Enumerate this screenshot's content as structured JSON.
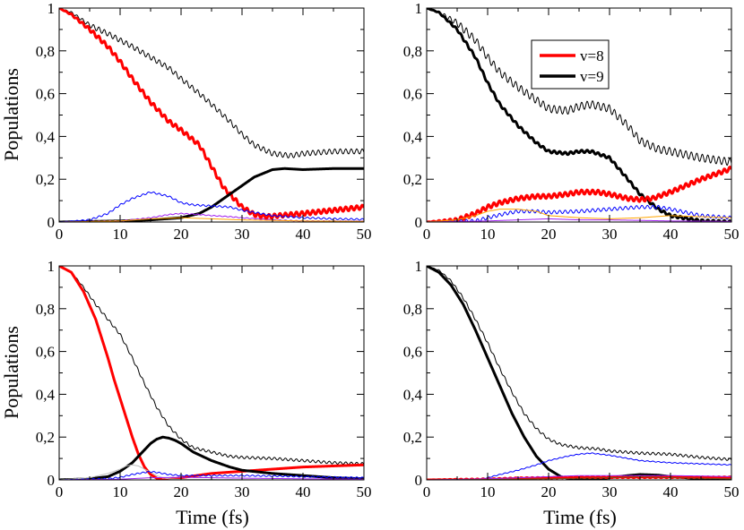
{
  "figure": {
    "ylabel": "Populations",
    "xlabel": "Time (fs)"
  },
  "legend": {
    "entries": [
      {
        "label": "v=8",
        "color": "#ff0000"
      },
      {
        "label": "v=9",
        "color": "#000000"
      }
    ]
  },
  "colors": {
    "red": "#ff0000",
    "black": "#000000",
    "blue": "#0000ff",
    "purple": "#a020f0",
    "orange": "#ffa500",
    "gray": "#bebebe",
    "brown": "#8b4513"
  },
  "chart_data": [
    {
      "type": "line",
      "panel": "top-left",
      "xlim": [
        0,
        50
      ],
      "ylim": [
        0,
        1
      ],
      "xticks": [
        "0",
        "10",
        "20",
        "30",
        "40",
        "50"
      ],
      "yticks": [
        "0",
        "0,2",
        "0,4",
        "0,6",
        "0,8",
        "1"
      ],
      "ylabel": "Populations",
      "xlabel": "",
      "series": [
        {
          "color": "black",
          "width": 1,
          "osc": 0.012,
          "x": [
            0,
            2,
            5,
            8,
            10,
            12,
            15,
            18,
            20,
            23,
            25,
            28,
            30,
            32,
            35,
            38,
            40,
            45,
            50
          ],
          "y": [
            1,
            0.98,
            0.92,
            0.88,
            0.85,
            0.82,
            0.77,
            0.72,
            0.67,
            0.6,
            0.55,
            0.47,
            0.41,
            0.36,
            0.32,
            0.31,
            0.32,
            0.33,
            0.33
          ]
        },
        {
          "color": "red",
          "width": 3,
          "osc": 0.01,
          "x": [
            0,
            2,
            5,
            8,
            10,
            12,
            15,
            18,
            20,
            23,
            25,
            27,
            30,
            32,
            34,
            36,
            40,
            45,
            50
          ],
          "y": [
            1,
            0.97,
            0.9,
            0.82,
            0.75,
            0.67,
            0.56,
            0.47,
            0.43,
            0.36,
            0.26,
            0.16,
            0.07,
            0.035,
            0.025,
            0.03,
            0.04,
            0.055,
            0.07
          ]
        },
        {
          "color": "black",
          "width": 3,
          "osc": 0,
          "x": [
            0,
            10,
            15,
            20,
            23,
            25,
            27,
            30,
            32,
            35,
            37,
            40,
            45,
            50
          ],
          "y": [
            0,
            0.005,
            0.01,
            0.02,
            0.04,
            0.07,
            0.11,
            0.17,
            0.21,
            0.245,
            0.25,
            0.245,
            0.25,
            0.25
          ]
        },
        {
          "color": "blue",
          "width": 1,
          "osc": 0.004,
          "x": [
            0,
            5,
            8,
            10,
            12,
            15,
            18,
            20,
            22,
            25,
            28,
            30,
            35,
            40,
            45,
            50
          ],
          "y": [
            0,
            0.01,
            0.04,
            0.08,
            0.11,
            0.14,
            0.12,
            0.09,
            0.08,
            0.075,
            0.07,
            0.055,
            0.03,
            0.02,
            0.015,
            0.012
          ]
        },
        {
          "color": "purple",
          "width": 1,
          "osc": 0.002,
          "x": [
            0,
            10,
            15,
            18,
            20,
            23,
            25,
            28,
            30,
            35,
            40,
            50
          ],
          "y": [
            0,
            0.005,
            0.02,
            0.035,
            0.04,
            0.035,
            0.03,
            0.025,
            0.02,
            0.01,
            0.005,
            0.003
          ]
        },
        {
          "color": "orange",
          "width": 1,
          "osc": 0,
          "x": [
            0,
            10,
            15,
            20,
            25,
            30,
            40,
            50
          ],
          "y": [
            0,
            0.005,
            0.015,
            0.02,
            0.015,
            0.01,
            0.005,
            0.003
          ]
        }
      ]
    },
    {
      "type": "line",
      "panel": "top-right",
      "xlim": [
        0,
        50
      ],
      "ylim": [
        0,
        1
      ],
      "xticks": [
        "0",
        "10",
        "20",
        "30",
        "40",
        "50"
      ],
      "yticks": [
        "0",
        "0,2",
        "0,4",
        "0,6",
        "0,8",
        "1"
      ],
      "ylabel": "",
      "xlabel": "",
      "series": [
        {
          "color": "black",
          "width": 1,
          "osc": 0.018,
          "x": [
            0,
            2,
            5,
            8,
            10,
            12,
            15,
            18,
            20,
            23,
            25,
            27,
            30,
            33,
            35,
            38,
            40,
            45,
            50
          ],
          "y": [
            1,
            0.98,
            0.93,
            0.85,
            0.77,
            0.7,
            0.63,
            0.57,
            0.53,
            0.52,
            0.54,
            0.55,
            0.53,
            0.45,
            0.38,
            0.34,
            0.33,
            0.3,
            0.28
          ]
        },
        {
          "color": "black",
          "width": 3,
          "osc": 0.006,
          "x": [
            0,
            2,
            5,
            8,
            10,
            12,
            15,
            18,
            20,
            23,
            25,
            27,
            30,
            33,
            35,
            38,
            40,
            45,
            50
          ],
          "y": [
            1,
            0.98,
            0.9,
            0.77,
            0.65,
            0.55,
            0.45,
            0.37,
            0.33,
            0.32,
            0.33,
            0.33,
            0.3,
            0.2,
            0.13,
            0.06,
            0.03,
            0.005,
            0
          ]
        },
        {
          "color": "red",
          "width": 3,
          "osc": 0.01,
          "x": [
            0,
            5,
            8,
            10,
            12,
            15,
            18,
            20,
            23,
            25,
            28,
            30,
            33,
            35,
            37,
            40,
            45,
            50
          ],
          "y": [
            0,
            0.01,
            0.04,
            0.07,
            0.09,
            0.11,
            0.12,
            0.12,
            0.13,
            0.14,
            0.14,
            0.13,
            0.11,
            0.105,
            0.11,
            0.14,
            0.2,
            0.25
          ]
        },
        {
          "color": "blue",
          "width": 1,
          "osc": 0.008,
          "x": [
            0,
            8,
            10,
            13,
            15,
            18,
            20,
            25,
            30,
            35,
            38,
            40,
            45,
            50
          ],
          "y": [
            0,
            0.005,
            0.02,
            0.04,
            0.05,
            0.05,
            0.045,
            0.05,
            0.06,
            0.07,
            0.07,
            0.06,
            0.03,
            0.02
          ]
        },
        {
          "color": "orange",
          "width": 1,
          "osc": 0,
          "x": [
            0,
            5,
            8,
            10,
            12,
            15,
            18,
            20,
            25,
            30,
            35,
            40,
            45,
            50
          ],
          "y": [
            0,
            0.01,
            0.03,
            0.05,
            0.06,
            0.06,
            0.05,
            0.03,
            0.02,
            0.015,
            0.02,
            0.03,
            0.025,
            0.02
          ]
        },
        {
          "color": "purple",
          "width": 1,
          "osc": 0,
          "x": [
            0,
            10,
            15,
            20,
            25,
            30,
            40,
            50
          ],
          "y": [
            0,
            0.005,
            0.01,
            0.015,
            0.01,
            0.01,
            0.005,
            0.003
          ]
        }
      ]
    },
    {
      "type": "line",
      "panel": "bottom-left",
      "xlim": [
        0,
        50
      ],
      "ylim": [
        0,
        1
      ],
      "xticks": [
        "0",
        "10",
        "20",
        "30",
        "40",
        "50"
      ],
      "yticks": [
        "0",
        "0,2",
        "0,4",
        "0,6",
        "0,8",
        "1"
      ],
      "ylabel": "Populations",
      "xlabel": "Time (fs)",
      "series": [
        {
          "color": "black",
          "width": 1,
          "osc": 0.006,
          "x": [
            0,
            2,
            4,
            6,
            8,
            10,
            12,
            14,
            16,
            18,
            20,
            22,
            25,
            28,
            30,
            35,
            40,
            45,
            50
          ],
          "y": [
            1,
            0.97,
            0.9,
            0.82,
            0.75,
            0.68,
            0.57,
            0.45,
            0.34,
            0.25,
            0.19,
            0.15,
            0.13,
            0.11,
            0.105,
            0.1,
            0.09,
            0.08,
            0.075
          ]
        },
        {
          "color": "red",
          "width": 3,
          "osc": 0,
          "x": [
            0,
            2,
            4,
            6,
            8,
            9,
            10,
            11,
            12,
            13,
            14,
            15,
            16,
            17,
            18,
            20,
            25,
            30,
            35,
            40,
            45,
            50
          ],
          "y": [
            1,
            0.97,
            0.88,
            0.75,
            0.57,
            0.47,
            0.38,
            0.29,
            0.2,
            0.12,
            0.06,
            0.025,
            0.008,
            0,
            0.002,
            0.01,
            0.03,
            0.04,
            0.05,
            0.06,
            0.065,
            0.07
          ]
        },
        {
          "color": "black",
          "width": 3,
          "osc": 0,
          "x": [
            0,
            5,
            8,
            10,
            12,
            13,
            14,
            15,
            16,
            17,
            18,
            19,
            20,
            22,
            25,
            28,
            30,
            35,
            40,
            45,
            50
          ],
          "y": [
            0,
            0.005,
            0.015,
            0.04,
            0.08,
            0.11,
            0.14,
            0.17,
            0.19,
            0.2,
            0.195,
            0.185,
            0.17,
            0.13,
            0.09,
            0.06,
            0.045,
            0.03,
            0.02,
            0.01,
            0.005
          ]
        },
        {
          "color": "gray",
          "width": 1,
          "osc": 0,
          "x": [
            0,
            5,
            8,
            10,
            11,
            12,
            13,
            14,
            15,
            16,
            17,
            18,
            20,
            25,
            30,
            40,
            50
          ],
          "y": [
            0,
            0.01,
            0.03,
            0.05,
            0.065,
            0.07,
            0.065,
            0.05,
            0.035,
            0.02,
            0.01,
            0.005,
            0.002,
            0.002,
            0.001,
            0,
            0
          ]
        },
        {
          "color": "blue",
          "width": 1,
          "osc": 0.003,
          "x": [
            0,
            8,
            10,
            12,
            14,
            15,
            16,
            18,
            20,
            25,
            30,
            35,
            40,
            50
          ],
          "y": [
            0,
            0.005,
            0.012,
            0.025,
            0.035,
            0.038,
            0.035,
            0.025,
            0.02,
            0.02,
            0.02,
            0.018,
            0.015,
            0.01
          ]
        },
        {
          "color": "purple",
          "width": 1,
          "osc": 0,
          "x": [
            0,
            10,
            15,
            20,
            25,
            30,
            40,
            50
          ],
          "y": [
            0,
            0.003,
            0.01,
            0.012,
            0.01,
            0.008,
            0.005,
            0.003
          ]
        }
      ]
    },
    {
      "type": "line",
      "panel": "bottom-right",
      "xlim": [
        0,
        50
      ],
      "ylim": [
        0,
        1
      ],
      "xticks": [
        "0",
        "10",
        "20",
        "30",
        "40",
        "50"
      ],
      "yticks": [
        "0",
        "0,2",
        "0,4",
        "0,6",
        "0,8",
        "1"
      ],
      "ylabel": "",
      "xlabel": "Time (fs)",
      "series": [
        {
          "color": "black",
          "width": 1,
          "osc": 0.006,
          "x": [
            0,
            2,
            4,
            6,
            8,
            10,
            12,
            14,
            16,
            18,
            20,
            22,
            25,
            28,
            30,
            35,
            40,
            45,
            50
          ],
          "y": [
            1,
            0.98,
            0.93,
            0.85,
            0.75,
            0.64,
            0.52,
            0.41,
            0.31,
            0.24,
            0.19,
            0.165,
            0.15,
            0.145,
            0.135,
            0.125,
            0.12,
            0.105,
            0.095
          ]
        },
        {
          "color": "black",
          "width": 3,
          "osc": 0,
          "x": [
            0,
            2,
            4,
            6,
            8,
            10,
            12,
            14,
            16,
            18,
            20,
            22,
            24,
            26,
            28,
            30,
            33,
            35,
            38,
            40,
            45,
            50
          ],
          "y": [
            1,
            0.97,
            0.91,
            0.82,
            0.7,
            0.57,
            0.44,
            0.31,
            0.2,
            0.11,
            0.05,
            0.015,
            0.002,
            0,
            0.003,
            0.01,
            0.02,
            0.025,
            0.022,
            0.015,
            0.005,
            0
          ]
        },
        {
          "color": "blue",
          "width": 1,
          "osc": 0.002,
          "x": [
            0,
            8,
            10,
            12,
            15,
            18,
            20,
            23,
            25,
            27,
            30,
            33,
            35,
            40,
            45,
            50
          ],
          "y": [
            0,
            0.003,
            0.01,
            0.025,
            0.045,
            0.07,
            0.09,
            0.11,
            0.12,
            0.125,
            0.115,
            0.1,
            0.09,
            0.08,
            0.075,
            0.07
          ]
        },
        {
          "color": "red",
          "width": 3,
          "osc": 0.002,
          "x": [
            0,
            10,
            15,
            20,
            25,
            30,
            35,
            40,
            45,
            50
          ],
          "y": [
            0,
            0.003,
            0.008,
            0.01,
            0.012,
            0.012,
            0.012,
            0.012,
            0.012,
            0.012
          ]
        },
        {
          "color": "purple",
          "width": 1,
          "osc": 0,
          "x": [
            0,
            10,
            15,
            20,
            25,
            30,
            35,
            40,
            45,
            50
          ],
          "y": [
            0,
            0.005,
            0.01,
            0.015,
            0.02,
            0.02,
            0.02,
            0.02,
            0.018,
            0.015
          ]
        },
        {
          "color": "brown",
          "width": 1,
          "osc": 0,
          "x": [
            0,
            10,
            20,
            30,
            35,
            40,
            50
          ],
          "y": [
            0,
            0.002,
            0.005,
            0.01,
            0.015,
            0.01,
            0.005
          ]
        }
      ]
    }
  ]
}
